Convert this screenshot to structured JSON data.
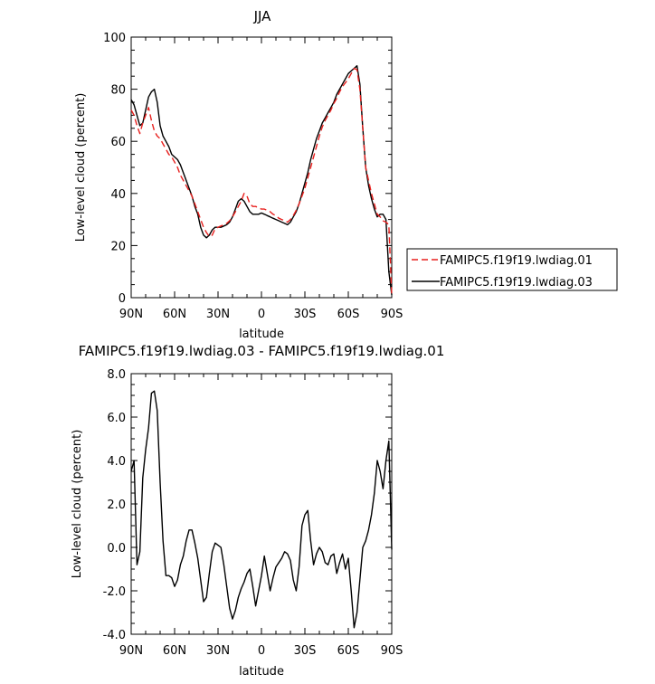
{
  "chart_data": [
    {
      "type": "line",
      "title": "JJA",
      "xlabel": "latitude",
      "ylabel": "Low-level cloud (percent)",
      "xlim": [
        90,
        -90
      ],
      "ylim": [
        0,
        100
      ],
      "x_ticks": [
        90,
        60,
        30,
        0,
        -30,
        -60,
        -90
      ],
      "x_tick_labels": [
        "90N",
        "60N",
        "30N",
        "0",
        "30S",
        "60S",
        "90S"
      ],
      "y_ticks": [
        0,
        20,
        40,
        60,
        80,
        100
      ],
      "y_tick_labels": [
        "0",
        "20",
        "40",
        "60",
        "80",
        "100"
      ],
      "legend_position": "right",
      "series": [
        {
          "name": "FAMIPC5.f19f19.lwdiag.01",
          "color": "#e8201e",
          "dash": true,
          "x": [
            90,
            88,
            86,
            84,
            82,
            80,
            78,
            76,
            74,
            72,
            70,
            68,
            66,
            64,
            62,
            60,
            58,
            56,
            54,
            52,
            50,
            48,
            46,
            44,
            42,
            40,
            38,
            36,
            34,
            32,
            30,
            28,
            26,
            24,
            22,
            20,
            18,
            16,
            14,
            12,
            10,
            8,
            6,
            4,
            2,
            0,
            -2,
            -4,
            -6,
            -8,
            -10,
            -12,
            -14,
            -16,
            -18,
            -20,
            -22,
            -24,
            -26,
            -28,
            -30,
            -32,
            -34,
            -36,
            -38,
            -40,
            -42,
            -44,
            -46,
            -48,
            -50,
            -52,
            -54,
            -56,
            -58,
            -60,
            -62,
            -64,
            -66,
            -68,
            -70,
            -72,
            -74,
            -76,
            -78,
            -80,
            -82,
            -84,
            -86,
            -88,
            -90
          ],
          "values": [
            72,
            70,
            66,
            63,
            67,
            70,
            73,
            68,
            64,
            62,
            61,
            59,
            57,
            55,
            54,
            52,
            50,
            47,
            45,
            43,
            41,
            39,
            36,
            33,
            30,
            27,
            25,
            23.5,
            24,
            26.5,
            27,
            27.5,
            28,
            28.5,
            29.5,
            31,
            33,
            35,
            37,
            40,
            39,
            36,
            35,
            35,
            34.5,
            34,
            34,
            33.5,
            33,
            32,
            31.5,
            30.5,
            30,
            29.5,
            29,
            30,
            31.5,
            33.5,
            36,
            39,
            42,
            46,
            50,
            54,
            58,
            62,
            65.5,
            68,
            70,
            72,
            74.5,
            76.5,
            79,
            81,
            82.5,
            84,
            86,
            88,
            87.5,
            80,
            65,
            50,
            45,
            40,
            36,
            32,
            31,
            29.5,
            29,
            28,
            1
          ]
        },
        {
          "name": "FAMIPC5.f19f19.lwdiag.03",
          "color": "#000000",
          "dash": false,
          "x": [
            90,
            88,
            86,
            84,
            82,
            80,
            78,
            76,
            74,
            72,
            70,
            68,
            66,
            64,
            62,
            60,
            58,
            56,
            54,
            52,
            50,
            48,
            46,
            44,
            42,
            40,
            38,
            36,
            34,
            32,
            30,
            28,
            26,
            24,
            22,
            20,
            18,
            16,
            14,
            12,
            10,
            8,
            6,
            4,
            2,
            0,
            -2,
            -4,
            -6,
            -8,
            -10,
            -12,
            -14,
            -16,
            -18,
            -20,
            -22,
            -24,
            -26,
            -28,
            -30,
            -32,
            -34,
            -36,
            -38,
            -40,
            -42,
            -44,
            -46,
            -48,
            -50,
            -52,
            -54,
            -56,
            -58,
            -60,
            -62,
            -64,
            -66,
            -68,
            -70,
            -72,
            -74,
            -76,
            -78,
            -80,
            -82,
            -84,
            -86,
            -88,
            -90
          ],
          "values": [
            76,
            74,
            70,
            66,
            67,
            72,
            77,
            79,
            80,
            75,
            66,
            62,
            60,
            58,
            55,
            54,
            53,
            51,
            48,
            45,
            42,
            39,
            35,
            32,
            27,
            24,
            23,
            24,
            26,
            27,
            27,
            27,
            27.5,
            28,
            29,
            31,
            34,
            37,
            38,
            37,
            35,
            33,
            32,
            32,
            32,
            32.5,
            32,
            31.5,
            31,
            30.5,
            30,
            29.5,
            29,
            28.5,
            28,
            29,
            31,
            33,
            36,
            40,
            44,
            48,
            53,
            57,
            61,
            64,
            67,
            69,
            71,
            73,
            75,
            78,
            80,
            82,
            84,
            86,
            87,
            88,
            89,
            82,
            65,
            50,
            43,
            38,
            34,
            31,
            32,
            32,
            30,
            10,
            1
          ]
        }
      ]
    },
    {
      "type": "line",
      "title": "FAMIPC5.f19f19.lwdiag.03 - FAMIPC5.f19f19.lwdiag.01",
      "xlabel": "latitude",
      "ylabel": "Low-level cloud (percent)",
      "xlim": [
        90,
        -90
      ],
      "ylim": [
        -4,
        8
      ],
      "x_ticks": [
        90,
        60,
        30,
        0,
        -30,
        -60,
        -90
      ],
      "x_tick_labels": [
        "90N",
        "60N",
        "30N",
        "0",
        "30S",
        "60S",
        "90S"
      ],
      "y_ticks": [
        -4,
        -2,
        0,
        2,
        4,
        6,
        8
      ],
      "y_tick_labels": [
        "-4.0",
        "-2.0",
        "0.0",
        "2.0",
        "4.0",
        "6.0",
        "8.0"
      ],
      "series": [
        {
          "color": "#000000",
          "x": [
            90,
            88,
            86,
            84,
            82,
            80,
            78,
            76,
            74,
            72,
            70,
            68,
            66,
            64,
            62,
            60,
            58,
            56,
            54,
            52,
            50,
            48,
            46,
            44,
            42,
            40,
            38,
            36,
            34,
            32,
            30,
            28,
            26,
            24,
            22,
            20,
            18,
            16,
            14,
            12,
            10,
            8,
            6,
            4,
            2,
            0,
            -2,
            -4,
            -6,
            -8,
            -10,
            -12,
            -14,
            -16,
            -18,
            -20,
            -22,
            -24,
            -26,
            -28,
            -30,
            -32,
            -34,
            -36,
            -38,
            -40,
            -42,
            -44,
            -46,
            -48,
            -50,
            -52,
            -54,
            -56,
            -58,
            -60,
            -62,
            -64,
            -66,
            -68,
            -70,
            -72,
            -74,
            -76,
            -78,
            -80,
            -82,
            -84,
            -86,
            -88,
            -90
          ],
          "values": [
            3.5,
            4.0,
            -0.8,
            -0.2,
            3.2,
            4.5,
            5.5,
            7.1,
            7.2,
            6.3,
            3.0,
            0.3,
            -1.3,
            -1.3,
            -1.4,
            -1.8,
            -1.5,
            -0.8,
            -0.4,
            0.3,
            0.8,
            0.8,
            0.2,
            -0.5,
            -1.5,
            -2.5,
            -2.3,
            -1.2,
            -0.2,
            0.2,
            0.1,
            0.0,
            -0.8,
            -1.8,
            -2.8,
            -3.3,
            -2.9,
            -2.3,
            -1.9,
            -1.6,
            -1.2,
            -1.0,
            -1.8,
            -2.7,
            -2.0,
            -1.3,
            -0.4,
            -1.2,
            -2.0,
            -1.4,
            -0.9,
            -0.7,
            -0.5,
            -0.2,
            -0.3,
            -0.6,
            -1.5,
            -2.0,
            -0.9,
            1.0,
            1.5,
            1.7,
            0.3,
            -0.8,
            -0.3,
            0.0,
            -0.2,
            -0.7,
            -0.8,
            -0.4,
            -0.3,
            -1.2,
            -0.7,
            -0.3,
            -1.0,
            -0.5,
            -2.0,
            -3.7,
            -3.0,
            -1.5,
            0.0,
            0.3,
            0.8,
            1.5,
            2.5,
            4.0,
            3.5,
            2.7,
            4.0,
            4.9,
            -0.1
          ]
        }
      ]
    }
  ]
}
